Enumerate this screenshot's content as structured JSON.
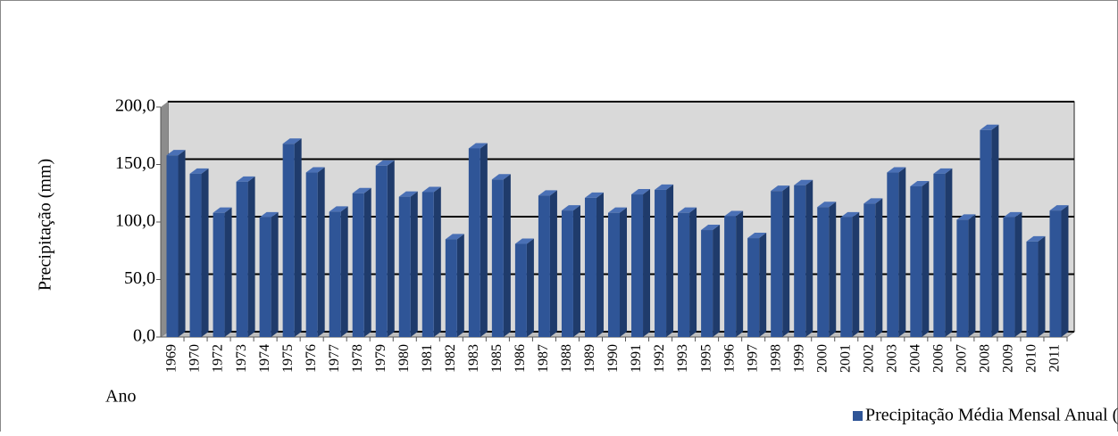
{
  "chart_data": {
    "type": "bar",
    "categories": [
      "1969",
      "1970",
      "1972",
      "1973",
      "1974",
      "1975",
      "1976",
      "1977",
      "1978",
      "1979",
      "1980",
      "1981",
      "1982",
      "1983",
      "1985",
      "1986",
      "1987",
      "1988",
      "1989",
      "1990",
      "1991",
      "1992",
      "1993",
      "1995",
      "1996",
      "1997",
      "1998",
      "1999",
      "2000",
      "2001",
      "2002",
      "2003",
      "2004",
      "2006",
      "2007",
      "2008",
      "2009",
      "2010",
      "2011"
    ],
    "series": [
      {
        "name": "Precipitação Média Mensal Anual (mm)",
        "color": "#2f5597",
        "values": [
          158,
          142,
          108,
          135,
          104,
          168,
          143,
          109,
          125,
          149,
          122,
          126,
          85,
          164,
          137,
          81,
          123,
          110,
          121,
          108,
          124,
          128,
          108,
          93,
          105,
          86,
          127,
          132,
          113,
          104,
          116,
          143,
          131,
          142,
          102,
          180,
          104,
          83,
          110
        ]
      }
    ],
    "ylim": [
      0,
      200
    ],
    "yticks": [
      {
        "value": 0,
        "label": "0,0"
      },
      {
        "value": 50,
        "label": "50,0"
      },
      {
        "value": 100,
        "label": "100,0"
      },
      {
        "value": 150,
        "label": "150,0"
      },
      {
        "value": 200,
        "label": "200,0"
      }
    ],
    "y_label": "Precipitação (mm)",
    "x_label": "Ano",
    "grid": true,
    "legend": "bottom-right"
  }
}
